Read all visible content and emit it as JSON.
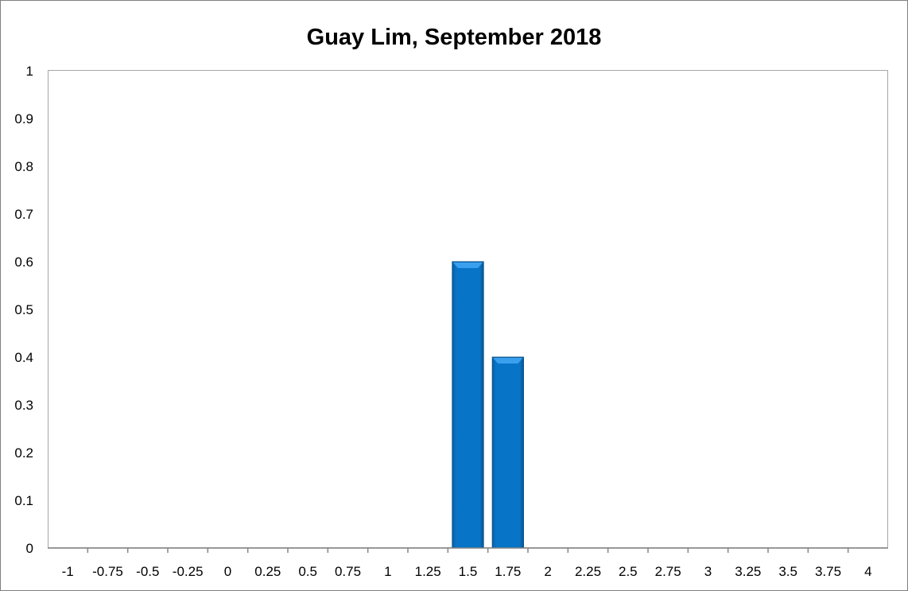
{
  "chart_data": {
    "type": "bar",
    "title": "Guay Lim, September 2018",
    "xlabel": "",
    "ylabel": "",
    "categories": [
      "-1",
      "-0.75",
      "-0.5",
      "-0.25",
      "0",
      "0.25",
      "0.5",
      "0.75",
      "1",
      "1.25",
      "1.5",
      "1.75",
      "2",
      "2.25",
      "2.5",
      "2.75",
      "3",
      "3.25",
      "3.5",
      "3.75",
      "4"
    ],
    "values": [
      0,
      0,
      0,
      0,
      0,
      0,
      0,
      0,
      0,
      0,
      0.6,
      0.4,
      0,
      0,
      0,
      0,
      0,
      0,
      0,
      0,
      0
    ],
    "ylim": [
      0,
      1
    ],
    "yticks": [
      "0",
      "0.1",
      "0.2",
      "0.3",
      "0.4",
      "0.5",
      "0.6",
      "0.7",
      "0.8",
      "0.9",
      "1"
    ],
    "grid": false,
    "legend": "none",
    "bar_color": "#0874C8"
  }
}
